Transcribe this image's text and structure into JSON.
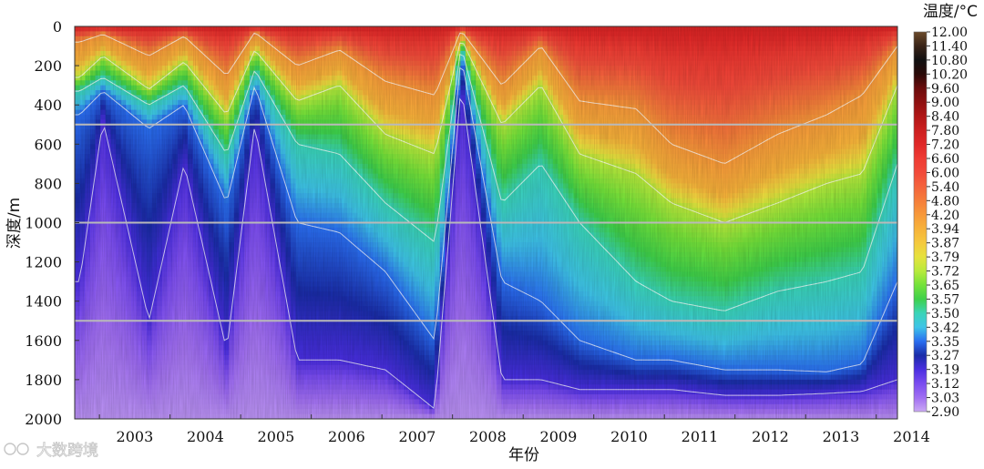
{
  "chart_data": {
    "type": "heatmap",
    "title": "",
    "xlabel": "年份",
    "ylabel": "深度/m",
    "colorbar_label": "温度/°C",
    "x_ticks": [
      "2003",
      "2004",
      "2005",
      "2006",
      "2007",
      "2008",
      "2009",
      "2010",
      "2011",
      "2012",
      "2013",
      "2014"
    ],
    "xlim": [
      2002.65,
      2014.3
    ],
    "y_ticks": [
      0,
      200,
      400,
      600,
      800,
      1000,
      1200,
      1400,
      1600,
      1800,
      2000
    ],
    "ylim": [
      2000,
      0
    ],
    "y_reversed": true,
    "reference_lines_depth": [
      500,
      1000,
      1500
    ],
    "colorbar_levels": [
      "12.00",
      "11.40",
      "10.80",
      "10.20",
      "9.60",
      "9.00",
      "8.40",
      "7.80",
      "7.20",
      "6.60",
      "6.00",
      "5.40",
      "4.80",
      "4.20",
      "3.94",
      "3.87",
      "3.79",
      "3.72",
      "3.65",
      "3.57",
      "3.50",
      "3.42",
      "3.35",
      "3.27",
      "3.19",
      "3.12",
      "3.03",
      "2.90"
    ],
    "colorbar_colors": [
      "#6b4a2a",
      "#3a2418",
      "#111111",
      "#2a0a08",
      "#6a0c0c",
      "#8e1010",
      "#b01616",
      "#cc1f1f",
      "#e02828",
      "#ee3b33",
      "#f24a3a",
      "#f4633c",
      "#f57d3a",
      "#f7993a",
      "#f7b23a",
      "#f5c93e",
      "#e6e23e",
      "#b8ea3c",
      "#74e23a",
      "#3ed04a",
      "#3ad4b8",
      "#3ec4e8",
      "#2a6ef0",
      "#1a2ca8",
      "#4a2ee0",
      "#7a4cf0",
      "#a06ef2",
      "#caa8f4"
    ],
    "time_profiles": [
      {
        "year": 2002.72,
        "isotherm_depths_m": {
          "4.20": 80,
          "3.72": 260,
          "3.50": 330,
          "3.35": 450,
          "3.19": 1300
        }
      },
      {
        "year": 2003.05,
        "isotherm_depths_m": {
          "4.20": 40,
          "3.72": 150,
          "3.50": 260,
          "3.35": 330,
          "3.19": 480
        }
      },
      {
        "year": 2003.7,
        "isotherm_depths_m": {
          "4.20": 150,
          "3.72": 320,
          "3.50": 400,
          "3.35": 520,
          "3.19": 1500
        }
      },
      {
        "year": 2004.2,
        "isotherm_depths_m": {
          "4.20": 50,
          "3.72": 180,
          "3.50": 300,
          "3.35": 400,
          "3.19": 700
        }
      },
      {
        "year": 2004.8,
        "isotherm_depths_m": {
          "4.20": 250,
          "3.72": 450,
          "3.50": 650,
          "3.35": 900,
          "3.19": 1650
        }
      },
      {
        "year": 2005.2,
        "isotherm_depths_m": {
          "4.20": 30,
          "3.72": 120,
          "3.50": 220,
          "3.35": 300,
          "3.19": 500
        }
      },
      {
        "year": 2005.8,
        "isotherm_depths_m": {
          "4.20": 200,
          "3.72": 380,
          "3.50": 600,
          "3.35": 1000,
          "3.19": 1700
        }
      },
      {
        "year": 2006.4,
        "isotherm_depths_m": {
          "4.20": 120,
          "3.72": 300,
          "3.50": 650,
          "3.35": 1050,
          "3.19": 1700
        }
      },
      {
        "year": 2007.05,
        "isotherm_depths_m": {
          "4.20": 280,
          "3.72": 550,
          "3.50": 900,
          "3.35": 1250,
          "3.19": 1750
        }
      },
      {
        "year": 2007.75,
        "isotherm_depths_m": {
          "4.20": 350,
          "3.72": 650,
          "3.50": 1100,
          "3.35": 1600,
          "3.19": 1950
        }
      },
      {
        "year": 2008.12,
        "isotherm_depths_m": {
          "4.20": 20,
          "3.72": 60,
          "3.50": 100,
          "3.35": 150,
          "3.19": 300
        }
      },
      {
        "year": 2008.7,
        "isotherm_depths_m": {
          "4.20": 300,
          "3.72": 500,
          "3.50": 900,
          "3.35": 1300,
          "3.19": 1800
        }
      },
      {
        "year": 2009.25,
        "isotherm_depths_m": {
          "4.20": 100,
          "3.72": 300,
          "3.50": 700,
          "3.35": 1400,
          "3.19": 1800
        }
      },
      {
        "year": 2009.8,
        "isotherm_depths_m": {
          "4.20": 380,
          "3.72": 650,
          "3.50": 1000,
          "3.35": 1600,
          "3.19": 1850
        }
      },
      {
        "year": 2010.6,
        "isotherm_depths_m": {
          "4.20": 420,
          "3.72": 750,
          "3.50": 1300,
          "3.35": 1700,
          "3.19": 1850
        }
      },
      {
        "year": 2011.1,
        "isotherm_depths_m": {
          "4.20": 600,
          "3.72": 900,
          "3.50": 1400,
          "3.35": 1700,
          "3.19": 1850
        }
      },
      {
        "year": 2011.85,
        "isotherm_depths_m": {
          "4.20": 700,
          "3.72": 1000,
          "3.50": 1450,
          "3.35": 1750,
          "3.19": 1880
        }
      },
      {
        "year": 2012.6,
        "isotherm_depths_m": {
          "4.20": 550,
          "3.72": 900,
          "3.50": 1350,
          "3.35": 1750,
          "3.19": 1880
        }
      },
      {
        "year": 2013.3,
        "isotherm_depths_m": {
          "4.20": 450,
          "3.72": 800,
          "3.50": 1300,
          "3.35": 1760,
          "3.19": 1870
        }
      },
      {
        "year": 2013.8,
        "isotherm_depths_m": {
          "4.20": 350,
          "3.72": 750,
          "3.50": 1250,
          "3.35": 1720,
          "3.19": 1860
        }
      },
      {
        "year": 2014.3,
        "isotherm_depths_m": {
          "4.20": 100,
          "3.72": 300,
          "3.50": 700,
          "3.35": 1300,
          "3.19": 1800
        }
      }
    ]
  },
  "watermark": "大数跨境"
}
